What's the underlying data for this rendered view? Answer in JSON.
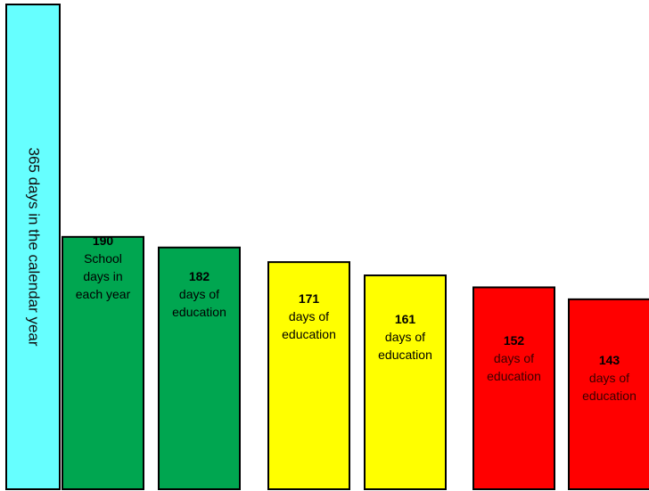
{
  "chart_data": {
    "type": "bar",
    "ylim": [
      0,
      365
    ],
    "grid": false,
    "legend": "none",
    "calendar_bar": {
      "value": 365,
      "label": "365 days in the calendar year",
      "color": "#66FFFF"
    },
    "bars": [
      {
        "value": 190,
        "number": "190",
        "lines": [
          "School",
          "days in",
          "each year"
        ],
        "color": "#00A650"
      },
      {
        "value": 182,
        "number": "182",
        "lines": [
          "days of",
          "education"
        ],
        "color": "#00A650"
      },
      {
        "value": 171,
        "number": "171",
        "lines": [
          "days of",
          "education"
        ],
        "color": "#FFFF00"
      },
      {
        "value": 161,
        "number": "161",
        "lines": [
          "days of",
          "education"
        ],
        "color": "#FFFF00"
      },
      {
        "value": 152,
        "number": "152",
        "lines": [
          "days of",
          "education"
        ],
        "color": "#FF0000"
      },
      {
        "value": 143,
        "number": "143",
        "lines": [
          "days of",
          "education"
        ],
        "color": "#FF0000"
      }
    ]
  }
}
